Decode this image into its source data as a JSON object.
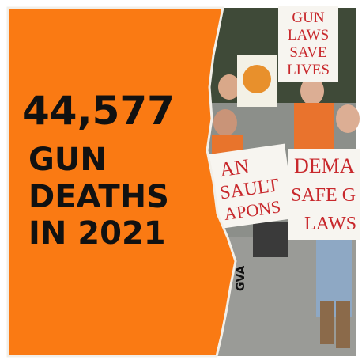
{
  "headline": {
    "number": "44,577",
    "lines": [
      "GUN",
      "DEATHS",
      "IN 2021"
    ]
  },
  "credit": "GVA",
  "signs": [
    {
      "lines": [
        "GUN",
        "LAWS",
        "SAVE",
        "LIVES"
      ]
    },
    {
      "lines": [
        "AN",
        "SAULT",
        "APONS"
      ]
    },
    {
      "lines": [
        "DEMA",
        "SAFE G",
        "LAWS"
      ]
    }
  ]
}
